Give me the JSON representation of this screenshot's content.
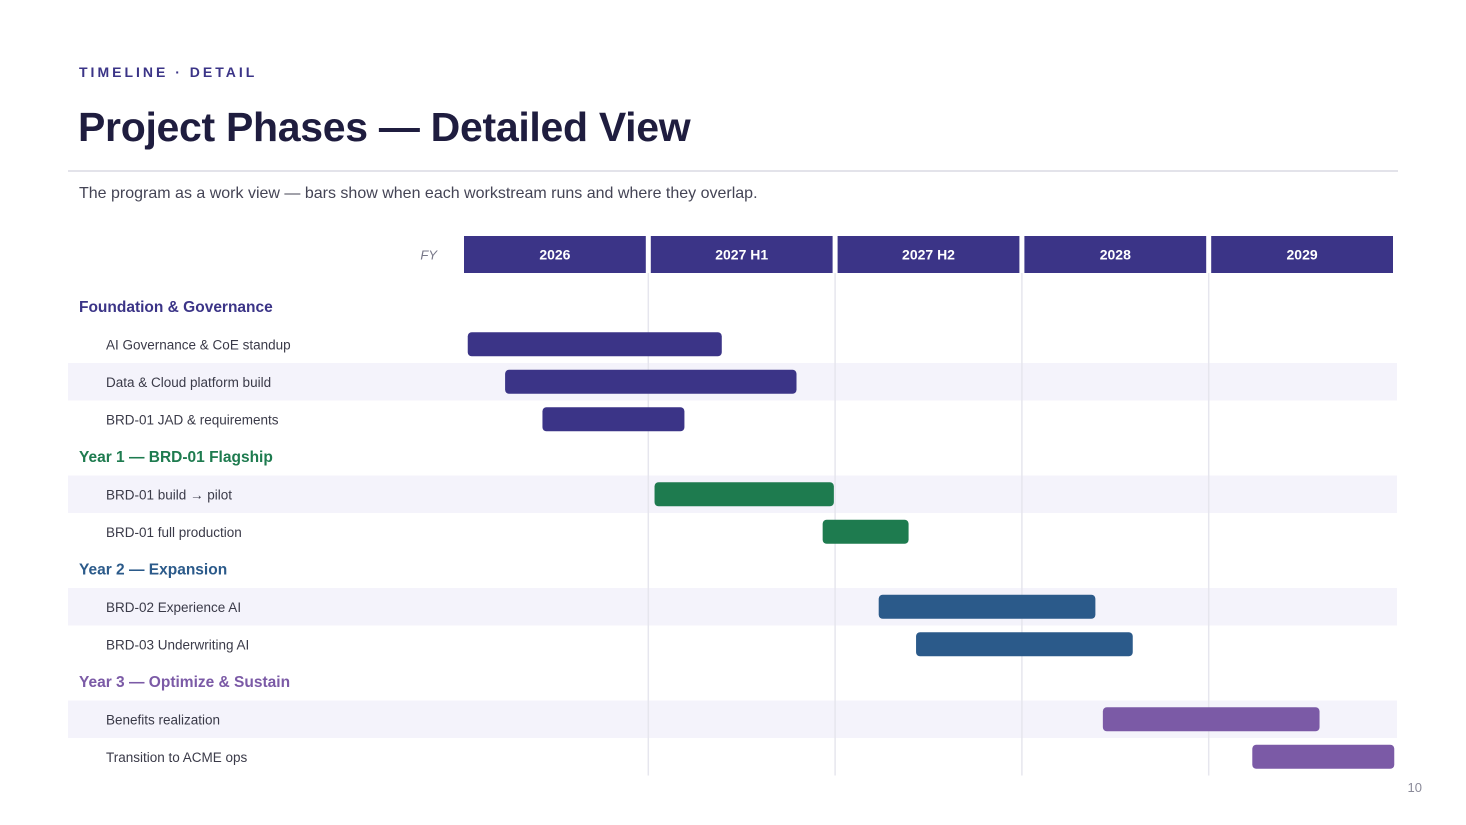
{
  "header": {
    "eyebrow": "TIMELINE · DETAIL",
    "title": "Project Phases — Detailed View",
    "subtitle": "The program as a work view — bars show when each workstream runs and where they overlap."
  },
  "footer": {
    "page_number": "10"
  },
  "chart_data": {
    "type": "gantt",
    "axis_label": "FY",
    "periods": [
      "2026",
      "2027 H1",
      "2027 H2",
      "2028",
      "2029"
    ],
    "colors": {
      "header_bg": "#3b3487",
      "stripe": "#f4f3fb",
      "grid": "#e6e6ee"
    },
    "groups": [
      {
        "name": "Foundation & Governance",
        "color": "#3b3487",
        "tasks": [
          {
            "name": "AI Governance & CoE standup",
            "start": 0.02,
            "end": 1.38
          },
          {
            "name": "Data & Cloud platform build",
            "start": 0.22,
            "end": 1.78
          },
          {
            "name": "BRD-01 JAD & requirements",
            "start": 0.42,
            "end": 1.18
          }
        ]
      },
      {
        "name": "Year 1 — BRD-01 Flagship",
        "color": "#1e7b4f",
        "tasks": [
          {
            "name": "BRD-01 build → pilot",
            "start": 1.02,
            "end": 1.98
          },
          {
            "name": "BRD-01 full production",
            "start": 1.92,
            "end": 2.38
          }
        ]
      },
      {
        "name": "Year 2 — Expansion",
        "color": "#2b5a8a",
        "tasks": [
          {
            "name": "BRD-02 Experience AI",
            "start": 2.22,
            "end": 3.38
          },
          {
            "name": "BRD-03 Underwriting AI",
            "start": 2.42,
            "end": 3.58
          }
        ]
      },
      {
        "name": "Year 3 — Optimize & Sustain",
        "color": "#7b5aa6",
        "tasks": [
          {
            "name": "Benefits realization",
            "start": 3.42,
            "end": 4.58
          },
          {
            "name": "Transition to ACME ops",
            "start": 4.22,
            "end": 4.98
          }
        ]
      }
    ]
  }
}
